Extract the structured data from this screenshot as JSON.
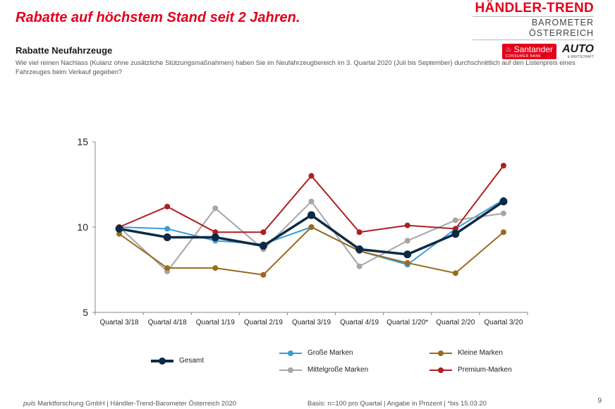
{
  "headline": "Rabatte auf höchstem Stand seit 2 Jahren.",
  "brand": {
    "title": "HÄNDLER-TREND",
    "subtitle": "BAROMETER ÖSTERREICH",
    "santander": "Santander",
    "santander_sub": "CONSUMER BANK",
    "auto": "AUTO",
    "auto_sub": "& WIRTSCHAFT"
  },
  "section_title": "Rabatte Neufahrzeuge",
  "question": "Wie viel reinen Nachlass (Kulanz ohne zusätzliche Stützungsmaßnahmen) haben Sie im Neufahrzeugbereich im 3. Quartal 2020 (Juli bis September) durchschnittlich auf den Listenpreis eines Fahrzeuges beim Verkauf gegeben?",
  "footer": {
    "company_prefix": "puls",
    "company_rest": " Marktforschung GmbH | Händler-Trend-Barometer Österreich 2020",
    "basis": "Basis: n=100 pro Quartal | Angabe in Prozent | *bis 15.03.20",
    "page_number": "9"
  },
  "chart_data": {
    "type": "line",
    "categories": [
      "Quartal 3/18",
      "Quartal 4/18",
      "Quartal 1/19",
      "Quartal 2/19",
      "Quartal 3/19",
      "Quartal 4/19",
      "Quartal 1/20*",
      "Quartal 2/20",
      "Quartal 3/20"
    ],
    "ylim": [
      5,
      15
    ],
    "yticks": [
      "5",
      "10",
      "15"
    ],
    "grid": false,
    "series": [
      {
        "name": "Große Marken",
        "color": "#3c9ad6",
        "values": [
          10.0,
          9.9,
          9.2,
          9.0,
          10.0,
          8.6,
          7.8,
          9.9,
          11.6
        ]
      },
      {
        "name": "Mittelgroße Marken",
        "color": "#a6a6a6",
        "values": [
          10.0,
          7.4,
          11.1,
          8.7,
          11.5,
          7.7,
          9.2,
          10.4,
          10.8
        ]
      },
      {
        "name": "Kleine Marken",
        "color": "#9b6a1e",
        "values": [
          9.6,
          7.6,
          7.6,
          7.2,
          10.0,
          8.6,
          7.9,
          7.3,
          9.7
        ]
      },
      {
        "name": "Premium-Marken",
        "color": "#b01e23",
        "values": [
          10.0,
          11.2,
          9.7,
          9.7,
          13.0,
          9.7,
          10.1,
          9.9,
          13.6
        ]
      },
      {
        "name": "Gesamt",
        "color": "#0d2a44",
        "values": [
          9.9,
          9.4,
          9.4,
          8.9,
          10.7,
          8.7,
          8.4,
          9.6,
          11.5
        ]
      }
    ]
  }
}
